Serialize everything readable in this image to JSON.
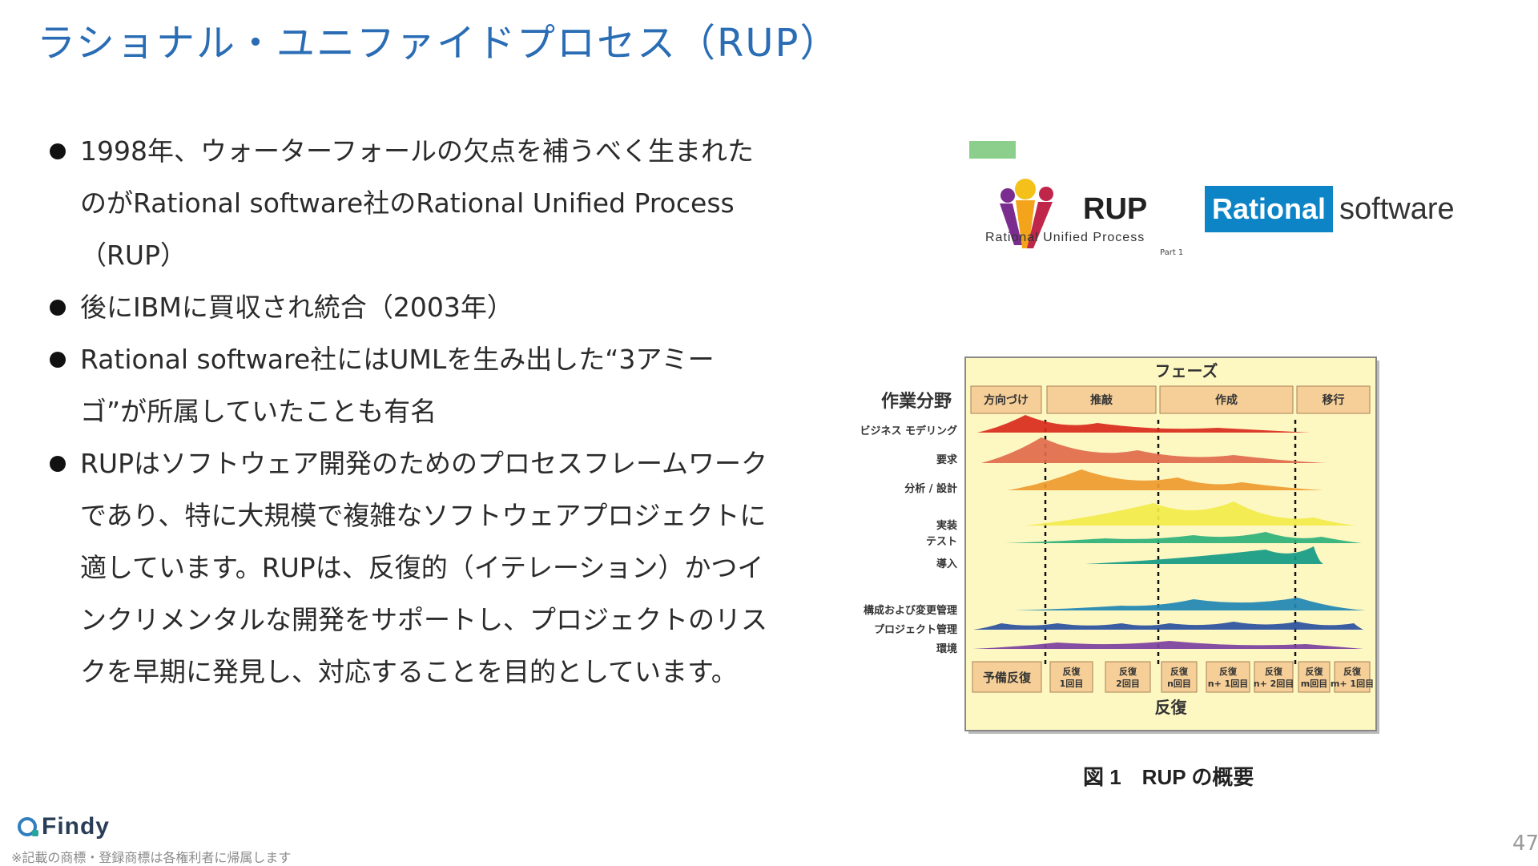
{
  "slide": {
    "title": "ラショナル・ユニファイドプロセス（RUP）",
    "page_number": "47",
    "footnote": "※記載の商標・登録商標は各権利者に帰属します",
    "logo_text": "Findy"
  },
  "bullets": [
    "1998年、ウォーターフォールの欠点を補うべく生まれたのがRational software社のRational Unified Process（RUP）",
    "後にIBMに買収され統合（2003年）",
    "Rational software社にはUMLを生み出した“3アミーゴ”が所属していたことも有名",
    "RUPはソフトウェア開発のためのプロセスフレームワークであり、特に大規模で複雑なソフトウェアプロジェクトに適しています。RUPは、反復的（イテレーション）かつインクリメンタルな開発をサポートし、プロジェクトのリスクを早期に発見し、対応することを目的としています。"
  ],
  "figure": {
    "rup_logo_text": "RUP",
    "rup_subtitle": "Rational Unified Process",
    "rup_part": "Part 1",
    "rational_label": "Rational",
    "software_label": "software",
    "phase_header": "フェーズ",
    "discipline_header": "作業分野",
    "phases": [
      "方向づけ",
      "推敲",
      "作成",
      "移行"
    ],
    "disciplines": [
      "ビジネス モデリング",
      "要求",
      "分析 / 設計",
      "実装",
      "テスト",
      "導入",
      "構成および変更管理",
      "プロジェクト管理",
      "環境"
    ],
    "iterations": [
      "予備反復",
      "反復 1回目",
      "反復 2回目",
      "反復 n回目",
      "反復 n+ 1回目",
      "反復 n+ 2回目",
      "反復 m回目",
      "反復 m+ 1回目"
    ],
    "iteration_footer": "反復",
    "caption": "図 1　RUP の概要",
    "colors": [
      "#d92a1c",
      "#e06a4c",
      "#ee9a2e",
      "#f2ea4a",
      "#2db07a",
      "#139a86",
      "#1f86b4",
      "#2a4fa0",
      "#7b3fa0"
    ]
  }
}
